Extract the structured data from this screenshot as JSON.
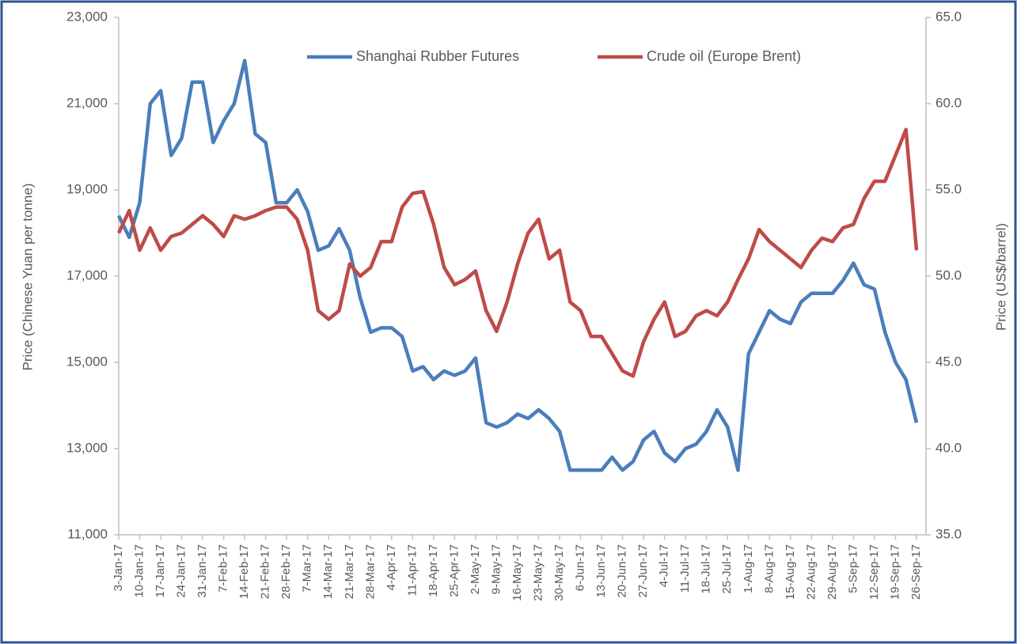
{
  "chart_data": {
    "type": "line",
    "categories": [
      "3-Jan-17",
      null,
      "10-Jan-17",
      null,
      "17-Jan-17",
      null,
      "24-Jan-17",
      null,
      "31-Jan-17",
      null,
      "7-Feb-17",
      null,
      "14-Feb-17",
      null,
      "21-Feb-17",
      null,
      "28-Feb-17",
      null,
      "7-Mar-17",
      null,
      "14-Mar-17",
      null,
      "21-Mar-17",
      null,
      "28-Mar-17",
      null,
      "4-Apr-17",
      null,
      "11-Apr-17",
      null,
      "18-Apr-17",
      null,
      "25-Apr-17",
      null,
      "2-May-17",
      null,
      "9-May-17",
      null,
      "16-May-17",
      null,
      "23-May-17",
      null,
      "30-May-17",
      null,
      "6-Jun-17",
      null,
      "13-Jun-17",
      null,
      "20-Jun-17",
      null,
      "27-Jun-17",
      null,
      "4-Jul-17",
      null,
      "11-Jul-17",
      null,
      "18-Jul-17",
      null,
      "25-Jul-17",
      null,
      "1-Aug-17",
      null,
      "8-Aug-17",
      null,
      "15-Aug-17",
      null,
      "22-Aug-17",
      null,
      "29-Aug-17",
      null,
      "5-Sep-17",
      null,
      "12-Sep-17",
      null,
      "19-Sep-17",
      null,
      "26-Sep-17"
    ],
    "series": [
      {
        "name": "Shanghai Rubber Futures",
        "color": "#4a7ebb",
        "axis": "y",
        "values": [
          18400,
          17900,
          18700,
          21000,
          21300,
          19800,
          20200,
          21500,
          21500,
          20100,
          20600,
          21000,
          22000,
          20300,
          20100,
          18700,
          18700,
          19000,
          18500,
          17600,
          17700,
          18100,
          17600,
          16500,
          15700,
          15800,
          15800,
          15600,
          14800,
          14900,
          14600,
          14800,
          14700,
          14800,
          15100,
          13600,
          13500,
          13600,
          13800,
          13700,
          13900,
          13700,
          13400,
          12500,
          12500,
          12500,
          12500,
          12800,
          12500,
          12700,
          13200,
          13400,
          12900,
          12700,
          13000,
          13100,
          13400,
          13900,
          13500,
          12500,
          15200,
          15700,
          16200,
          16000,
          15900,
          16400,
          16600,
          16600,
          16600,
          16900,
          17300,
          16800,
          16700,
          15700,
          15000,
          14600,
          13600
        ]
      },
      {
        "name": "Crude oil (Europe Brent)",
        "color": "#be4b48",
        "axis": "y2",
        "values": [
          52.5,
          53.8,
          51.5,
          52.8,
          51.5,
          52.3,
          52.5,
          53,
          53.5,
          53,
          52.3,
          53.5,
          53.3,
          53.5,
          53.8,
          54,
          54,
          53.3,
          51.5,
          48,
          47.5,
          48,
          50.7,
          50,
          50.5,
          52,
          52,
          54,
          54.8,
          54.9,
          53,
          50.5,
          49.5,
          49.8,
          50.3,
          48,
          46.8,
          48.5,
          50.7,
          52.5,
          53.3,
          51,
          51.5,
          48.5,
          48,
          46.5,
          46.5,
          45.5,
          44.5,
          44.2,
          46.2,
          47.5,
          48.5,
          46.5,
          46.8,
          47.7,
          48,
          47.7,
          48.5,
          49.8,
          51,
          52.7,
          52,
          51.5,
          51,
          50.5,
          51.5,
          52.2,
          52,
          52.8,
          53,
          54.5,
          55.5,
          55.5,
          57,
          58.5,
          51.5
        ]
      }
    ],
    "ylabel": "Price (Chinese Yuan per tonne)",
    "y2label": "Price (US$/barrel)",
    "ylim": [
      11000,
      23000
    ],
    "yticks": [
      {
        "value": 11000,
        "label": "11,000"
      },
      {
        "value": 13000,
        "label": "13,000"
      },
      {
        "value": 15000,
        "label": "15,000"
      },
      {
        "value": 17000,
        "label": "17,000"
      },
      {
        "value": 19000,
        "label": "19,000"
      },
      {
        "value": 21000,
        "label": "21,000"
      },
      {
        "value": 23000,
        "label": "23,000"
      }
    ],
    "y2lim": [
      35,
      65
    ],
    "y2ticks": [
      {
        "value": 35,
        "label": "35.0"
      },
      {
        "value": 40,
        "label": "40.0"
      },
      {
        "value": 45,
        "label": "45.0"
      },
      {
        "value": 50,
        "label": "50.0"
      },
      {
        "value": 55,
        "label": "55.0"
      },
      {
        "value": 60,
        "label": "60.0"
      },
      {
        "value": 65,
        "label": "65.0"
      }
    ],
    "legend": "top",
    "grid": false
  }
}
